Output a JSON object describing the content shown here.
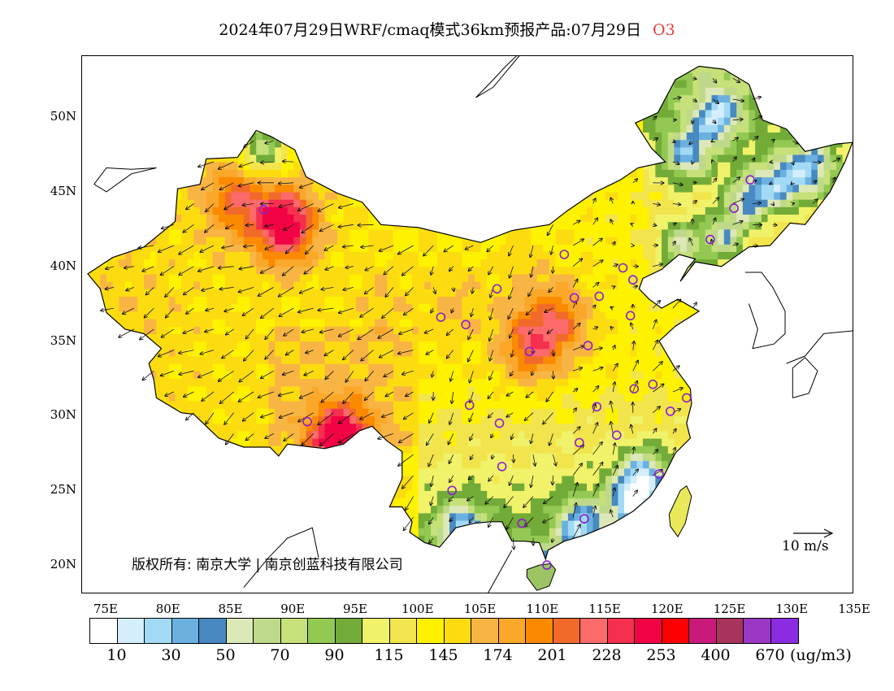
{
  "header": {
    "title": "2024年07月29日WRF/cmaq模式36km预报产品:07月29日",
    "species": "O3"
  },
  "map": {
    "lon_range": [
      73,
      135
    ],
    "lat_range": [
      18,
      54
    ],
    "x_ticks": [
      "75E",
      "80E",
      "85E",
      "90E",
      "95E",
      "100E",
      "105E",
      "110E",
      "115E",
      "120E",
      "125E",
      "130E",
      "135E"
    ],
    "y_ticks": [
      "50N",
      "45N",
      "40N",
      "35N",
      "30N",
      "25N",
      "20N"
    ],
    "copyright": "版权所有: 南京大学 | 南京创蓝科技有限公司",
    "reference_vector": "10 m/s"
  },
  "legend": {
    "unit": "(ug/m3)",
    "labels": [
      "10",
      "30",
      "50",
      "70",
      "90",
      "115",
      "145",
      "174",
      "201",
      "228",
      "253",
      "400",
      "670"
    ],
    "colors": [
      "#ffffff",
      "#d4eefb",
      "#a2daf5",
      "#6bb1e0",
      "#4789c0",
      "#dde8b8",
      "#bfd98a",
      "#c6e07a",
      "#93c953",
      "#72ab38",
      "#f0f26a",
      "#f2e44c",
      "#fff200",
      "#fcdc10",
      "#f8b544",
      "#fba82a",
      "#fb8a00",
      "#f26a2a",
      "#fc6a6a",
      "#f52f4e",
      "#f20344",
      "#ff0000",
      "#c91a7c",
      "#a8335c",
      "#9a38c4",
      "#8b2be2"
    ]
  },
  "stations": [
    {
      "lon": 87.6,
      "lat": 43.8
    },
    {
      "lon": 91.1,
      "lat": 29.6
    },
    {
      "lon": 101.8,
      "lat": 36.6
    },
    {
      "lon": 103.8,
      "lat": 36.1
    },
    {
      "lon": 106.3,
      "lat": 38.5
    },
    {
      "lon": 104.1,
      "lat": 30.7
    },
    {
      "lon": 106.5,
      "lat": 29.5
    },
    {
      "lon": 106.7,
      "lat": 26.6
    },
    {
      "lon": 102.7,
      "lat": 25.0
    },
    {
      "lon": 108.3,
      "lat": 22.8
    },
    {
      "lon": 110.3,
      "lat": 20.0
    },
    {
      "lon": 113.3,
      "lat": 23.1
    },
    {
      "lon": 112.9,
      "lat": 28.2
    },
    {
      "lon": 114.3,
      "lat": 30.6
    },
    {
      "lon": 115.9,
      "lat": 28.7
    },
    {
      "lon": 119.3,
      "lat": 26.1
    },
    {
      "lon": 120.2,
      "lat": 30.3
    },
    {
      "lon": 121.5,
      "lat": 31.2
    },
    {
      "lon": 118.8,
      "lat": 32.1
    },
    {
      "lon": 117.3,
      "lat": 31.8
    },
    {
      "lon": 113.6,
      "lat": 34.7
    },
    {
      "lon": 108.9,
      "lat": 34.3
    },
    {
      "lon": 111.7,
      "lat": 40.8
    },
    {
      "lon": 112.5,
      "lat": 37.9
    },
    {
      "lon": 114.5,
      "lat": 38.0
    },
    {
      "lon": 117.0,
      "lat": 36.7
    },
    {
      "lon": 116.4,
      "lat": 39.9
    },
    {
      "lon": 117.2,
      "lat": 39.1
    },
    {
      "lon": 123.4,
      "lat": 41.8
    },
    {
      "lon": 125.3,
      "lat": 43.9
    },
    {
      "lon": 126.6,
      "lat": 45.8
    }
  ]
}
